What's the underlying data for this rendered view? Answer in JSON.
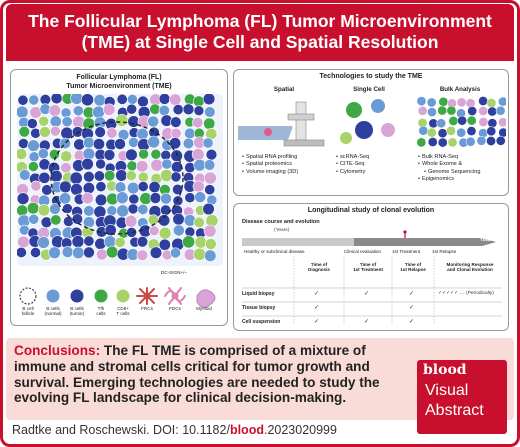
{
  "title": "The Follicular Lymphoma (FL) Tumor Microenvironment (TME) at Single Cell and Spatial Resolution",
  "left_panel": {
    "title_line1": "Follicular Lymphoma (FL)",
    "title_line2": "Tumor Microenvironment (TME)",
    "legend": [
      {
        "label_l1": "B cell",
        "label_l2": "follicle",
        "icon": "dashed-circle-icon"
      },
      {
        "label_l1": "B cells",
        "label_l2": "(normal)",
        "icon": "b-cell-normal-icon",
        "color": "#6b9bd6"
      },
      {
        "label_l1": "B cells",
        "label_l2": "(tumor)",
        "icon": "b-cell-tumor-icon",
        "color": "#2f3f9e"
      },
      {
        "label_l1": "Tfh",
        "label_l2": "cells",
        "icon": "tfh-cell-icon",
        "color": "#3ea844"
      },
      {
        "label_l1": "CD8+",
        "label_l2": "T cells",
        "icon": "cd8-t-cell-icon",
        "color": "#a8d26a"
      },
      {
        "label_l1": "FRCs",
        "label_l2": "",
        "icon": "frc-icon",
        "color": "#c94b45"
      },
      {
        "label_l1": "FDCs",
        "label_l2": "",
        "icon": "fdc-icon",
        "color": "#e07fb0"
      },
      {
        "label_l1": "Myeloid",
        "label_l2": "",
        "icon": "myeloid-icon",
        "color": "#d9a4d6"
      }
    ],
    "dc_sign_label": "DC-SIGN+/–"
  },
  "tech_panel": {
    "title": "Technologies to study the TME",
    "columns": [
      {
        "title": "Spatial",
        "items": [
          "Spatial RNA profiling",
          "Spatial proteomics",
          "Volume imaging (3D)"
        ]
      },
      {
        "title": "Single Cell",
        "items": [
          "scRNA-Seq",
          "CITE-Seq",
          "Cytometry"
        ]
      },
      {
        "title": "Bulk Analysis",
        "items": [
          "Bulk RNA-Seq",
          "Whole Exome &",
          "Genome Sequencing",
          "Epigenomics"
        ]
      }
    ]
  },
  "long_panel": {
    "title": "Longitudinal study of clonal evolution",
    "disease_course": "Disease course and evolution",
    "years": "(Years)",
    "time_label": "TIME",
    "timeline": [
      "Healthy or subclinical disease",
      "Clinical evaluation",
      "1st Treatment",
      "1st Relapse"
    ],
    "table_headers": [
      [
        "Time of",
        "Diagnosis"
      ],
      [
        "Time of",
        "1st Treatment"
      ],
      [
        "Time of",
        "1st Relapse"
      ],
      [
        "Monitoring Response",
        "and Clonal Evolution"
      ]
    ],
    "rows": [
      {
        "label": "Liquid biopsy",
        "checks": [
          "✓",
          "✓",
          "✓"
        ],
        "monitor": "✓✓✓✓✓ .... (Periodically)"
      },
      {
        "label": "Tissue biopsy",
        "checks": [
          "✓",
          "",
          "✓"
        ],
        "monitor": ""
      },
      {
        "label": "Cell suspension",
        "checks": [
          "✓",
          "✓",
          "✓"
        ],
        "monitor": ""
      }
    ]
  },
  "conclusion": {
    "label": "Conclusions:",
    "text": "The FL TME is comprised of a mixture of immune and stromal cells critical for tumor growth and survival. Emerging technologies are needed to study the evolving FL landscape for clinical decision-making."
  },
  "badge": {
    "logo": "blood",
    "line1": "Visual",
    "line2": "Abstract"
  },
  "footer": {
    "authors": "Radtke and Roschewski. DOI: 10.1182/",
    "doi_bold": "blood",
    "doi_end": ".2023020999"
  },
  "colors": {
    "accent": "#c8102e",
    "conclusion_bg": "#f9dcd8"
  }
}
